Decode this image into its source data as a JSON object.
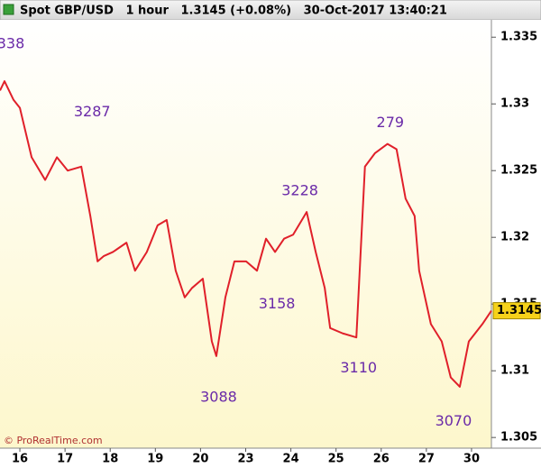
{
  "chart_data": {
    "type": "line",
    "title": "Spot GBP/USD   1 hour   1.3145 (+0.08%)   30-Oct-2017 13:40:21",
    "watermark": "© ProRealTime.com",
    "x": [
      -0.44,
      -0.34,
      -0.14,
      0,
      0.26,
      0.56,
      0.82,
      1.06,
      1.36,
      1.56,
      1.72,
      1.86,
      2.06,
      2.36,
      2.55,
      2.81,
      3.05,
      3.25,
      3.45,
      3.65,
      3.81,
      4.05,
      4.25,
      4.35,
      4.55,
      4.75,
      5.01,
      5.25,
      5.45,
      5.65,
      5.85,
      6.05,
      6.35,
      6.55,
      6.75,
      6.87,
      7.15,
      7.45,
      7.64,
      7.86,
      8.14,
      8.34,
      8.54,
      8.74,
      8.84,
      9.1,
      9.34,
      9.54,
      9.74,
      9.94,
      10.24,
      10.44
    ],
    "series": [
      {
        "name": "GBP/USD",
        "color": "#e0202a",
        "values": [
          1.331,
          1.3317,
          1.3303,
          1.3297,
          1.326,
          1.3243,
          1.326,
          1.325,
          1.3253,
          1.3216,
          1.3182,
          1.3186,
          1.3189,
          1.3196,
          1.3175,
          1.3189,
          1.3209,
          1.3213,
          1.3175,
          1.3155,
          1.3162,
          1.3169,
          1.3122,
          1.3111,
          1.3155,
          1.3182,
          1.3182,
          1.3175,
          1.3199,
          1.3189,
          1.3199,
          1.3202,
          1.3219,
          1.3189,
          1.3162,
          1.3132,
          1.3128,
          1.3125,
          1.3253,
          1.3263,
          1.327,
          1.3266,
          1.3229,
          1.3216,
          1.3175,
          1.3135,
          1.3122,
          1.3095,
          1.3088,
          1.3122,
          1.3135,
          1.3145
        ]
      }
    ],
    "annotations": [
      {
        "text": "338",
        "x": -0.2,
        "y": 1.3338
      },
      {
        "text": "3287",
        "x": 1.6,
        "y": 1.3287
      },
      {
        "text": "3228",
        "x": 6.2,
        "y": 1.3228
      },
      {
        "text": "279",
        "x": 8.2,
        "y": 1.3279
      },
      {
        "text": "3158",
        "x": 5.69,
        "y": 1.3158
      },
      {
        "text": "3088",
        "x": 4.4,
        "y": 1.3088
      },
      {
        "text": "3110",
        "x": 7.5,
        "y": 1.311
      },
      {
        "text": "3070",
        "x": 9.6,
        "y": 1.307
      }
    ],
    "last_price": {
      "value": 1.3145,
      "label": "1.3145"
    },
    "xlim": [
      -0.44,
      10.44
    ],
    "xticks": [
      {
        "value": 0,
        "label": "16"
      },
      {
        "value": 1,
        "label": "17"
      },
      {
        "value": 2,
        "label": "18"
      },
      {
        "value": 3,
        "label": "19"
      },
      {
        "value": 4,
        "label": "20"
      },
      {
        "value": 5,
        "label": "23"
      },
      {
        "value": 6,
        "label": "24"
      },
      {
        "value": 7,
        "label": "25"
      },
      {
        "value": 8,
        "label": "26"
      },
      {
        "value": 9,
        "label": "27"
      },
      {
        "value": 10,
        "label": "30"
      }
    ],
    "ylim": [
      1.3042,
      1.3363
    ],
    "yticks": [
      1.305,
      1.31,
      1.315,
      1.32,
      1.325,
      1.33,
      1.335
    ]
  }
}
